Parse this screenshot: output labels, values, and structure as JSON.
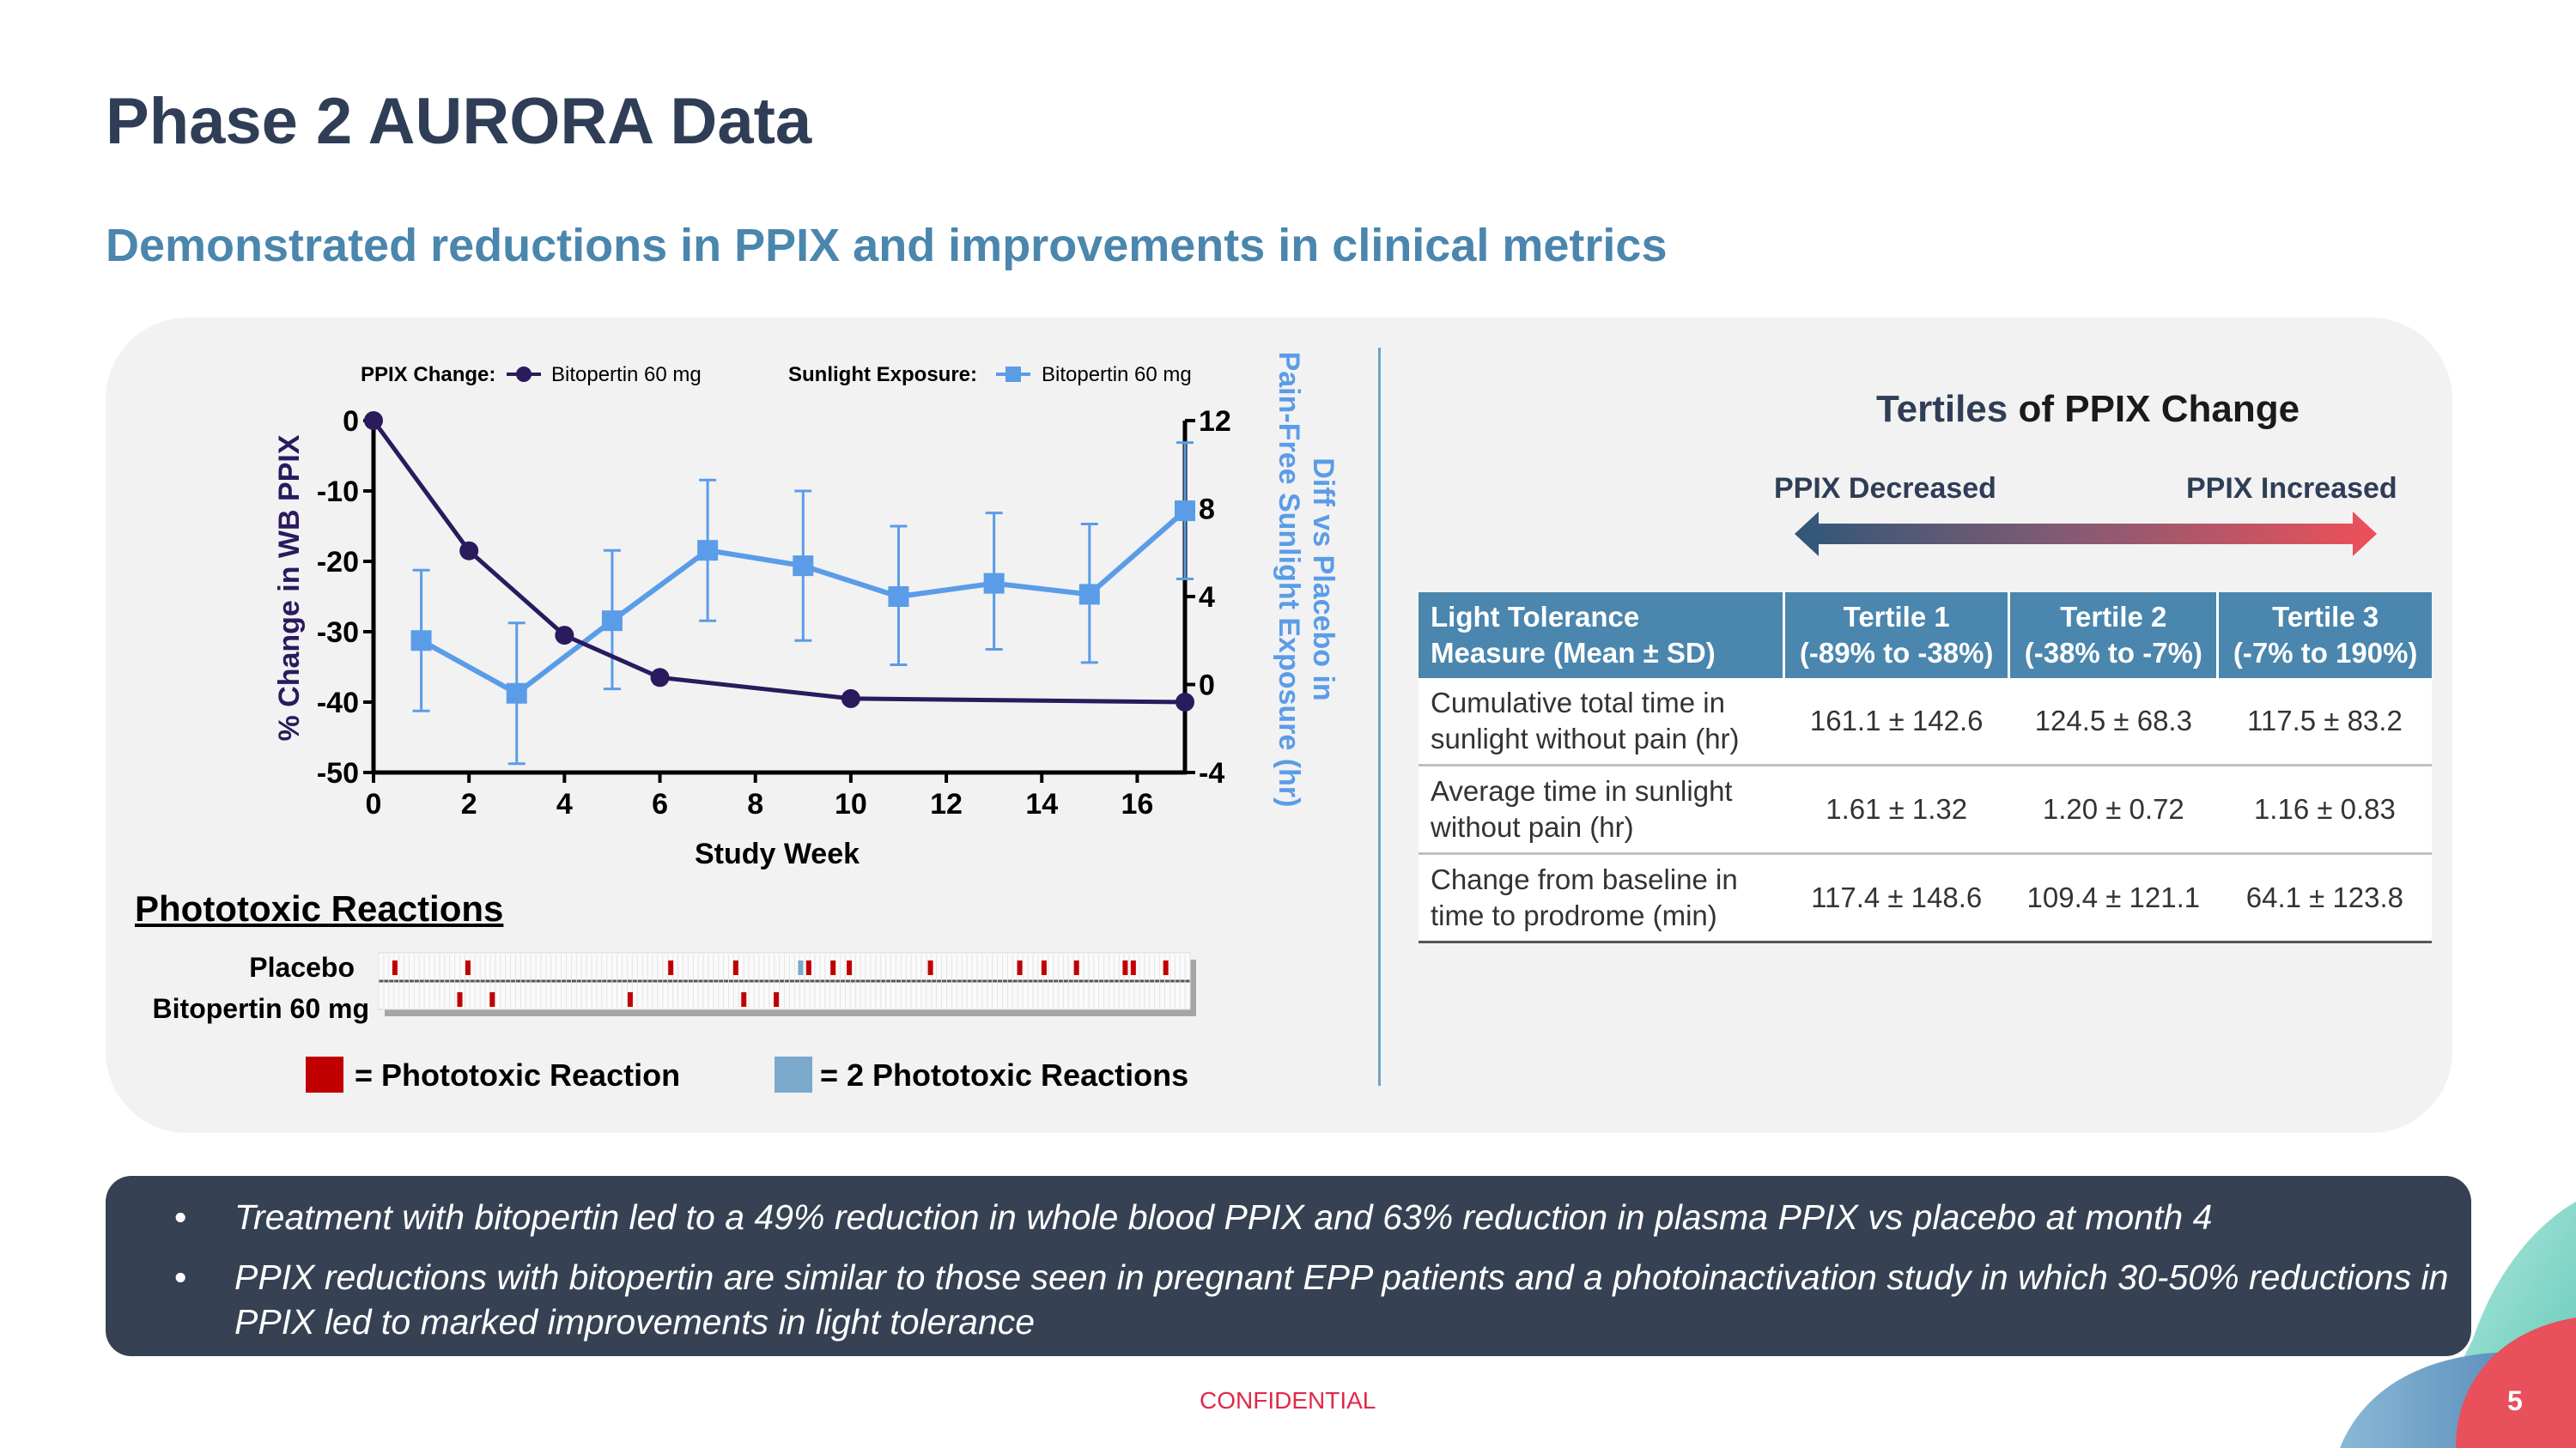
{
  "title": "Phase 2 AURORA Data",
  "subtitle": "Demonstrated reductions in PPIX and improvements in clinical metrics",
  "chart_data": {
    "type": "line",
    "legend": {
      "ppix_label": "PPIX Change:",
      "ppix_series": "Bitopertin 60 mg",
      "sun_label": "Sunlight Exposure:",
      "sun_series": "Bitopertin 60 mg"
    },
    "xlabel": "Study Week",
    "ylabel_left": "% Change in WB PPIX",
    "ylabel_right_line1": "Diff vs Placebo in",
    "ylabel_right_line2": "Pain-Free Sunlight Exposure (hr)",
    "x_ticks": [
      0,
      2,
      4,
      6,
      8,
      10,
      12,
      14,
      16
    ],
    "xlim": [
      0,
      17
    ],
    "y_left_ticks": [
      0,
      -10,
      -20,
      -30,
      -40,
      -50
    ],
    "y_left_lim": [
      -50,
      0
    ],
    "y_right_ticks": [
      12,
      8,
      4,
      0,
      -4
    ],
    "y_right_lim": [
      -4,
      12
    ],
    "series": [
      {
        "name": "PPIX Change: Bitopertin 60 mg",
        "axis": "left",
        "color": "#2a1a5e",
        "marker": "circle",
        "x": [
          0,
          2,
          4,
          6,
          10,
          17
        ],
        "y": [
          0,
          -18.5,
          -30.5,
          -36.5,
          -39.5,
          -40
        ]
      },
      {
        "name": "Sunlight Exposure: Bitopertin 60 mg",
        "axis": "right",
        "color": "#5b9ce8",
        "marker": "square",
        "x": [
          1,
          3,
          5,
          7,
          9,
          11,
          13,
          15,
          17
        ],
        "y": [
          2,
          -0.4,
          2.9,
          6.1,
          5.4,
          4.0,
          4.6,
          4.1,
          7.9
        ],
        "err_low": [
          -1.2,
          -3.6,
          -0.2,
          2.9,
          2.0,
          0.9,
          1.6,
          1.0,
          4.8
        ],
        "err_high": [
          5.2,
          2.8,
          6.1,
          9.3,
          8.8,
          7.2,
          7.8,
          7.3,
          11.0
        ]
      }
    ]
  },
  "phototoxic": {
    "title": "Phototoxic Reactions",
    "rows": [
      {
        "label": "Placebo",
        "events": [
          0.02,
          0.11,
          0.36,
          0.44,
          0.53,
          0.56,
          0.58,
          0.68,
          0.79,
          0.82,
          0.86,
          0.92,
          0.93,
          0.97
        ],
        "double_events": [
          0.52
        ]
      },
      {
        "label": "Bitopertin 60 mg",
        "events": [
          0.1,
          0.14,
          0.31,
          0.45,
          0.49
        ],
        "double_events": []
      }
    ],
    "legend_single": "= Phototoxic Reaction",
    "legend_double": "= 2 Phototoxic Reactions",
    "single_color": "#c00000",
    "double_color": "#7aa9cc"
  },
  "tertiles": {
    "title_part1": "Tertiles",
    "title_part2": " of PPIX Change",
    "decreased": "PPIX Decreased",
    "increased": "PPIX Increased",
    "headers": [
      {
        "line1": "Light Tolerance",
        "line2": "Measure (Mean ± SD)"
      },
      {
        "line1": "Tertile 1",
        "line2": "(-89% to -38%)"
      },
      {
        "line1": "Tertile 2",
        "line2": "(-38% to -7%)"
      },
      {
        "line1": "Tertile 3",
        "line2": "(-7% to 190%)"
      }
    ],
    "rows": [
      {
        "line1": "Cumulative total time in",
        "line2": "sunlight without pain (hr)",
        "t1": "161.1 ± 142.6",
        "t2": "124.5 ± 68.3",
        "t3": "117.5 ± 83.2"
      },
      {
        "line1": "Average time in sunlight",
        "line2": "without pain (hr)",
        "t1": "1.61 ± 1.32",
        "t2": "1.20 ± 0.72",
        "t3": "1.16 ± 0.83"
      },
      {
        "line1": "Change from baseline in",
        "line2": "time to prodrome (min)",
        "t1": "117.4 ± 148.6",
        "t2": "109.4 ± 121.1",
        "t3": "64.1 ± 123.8"
      }
    ]
  },
  "bullets": [
    "Treatment with bitopertin led to a 49% reduction in whole blood PPIX and 63% reduction in plasma PPIX vs placebo at month 4",
    "PPIX reductions with bitopertin are similar to those seen in pregnant EPP patients and a photoinactivation study in which 30-50% reductions in PPIX led to marked improvements in light tolerance"
  ],
  "footer": {
    "confidential": "CONFIDENTIAL",
    "page": "5"
  }
}
